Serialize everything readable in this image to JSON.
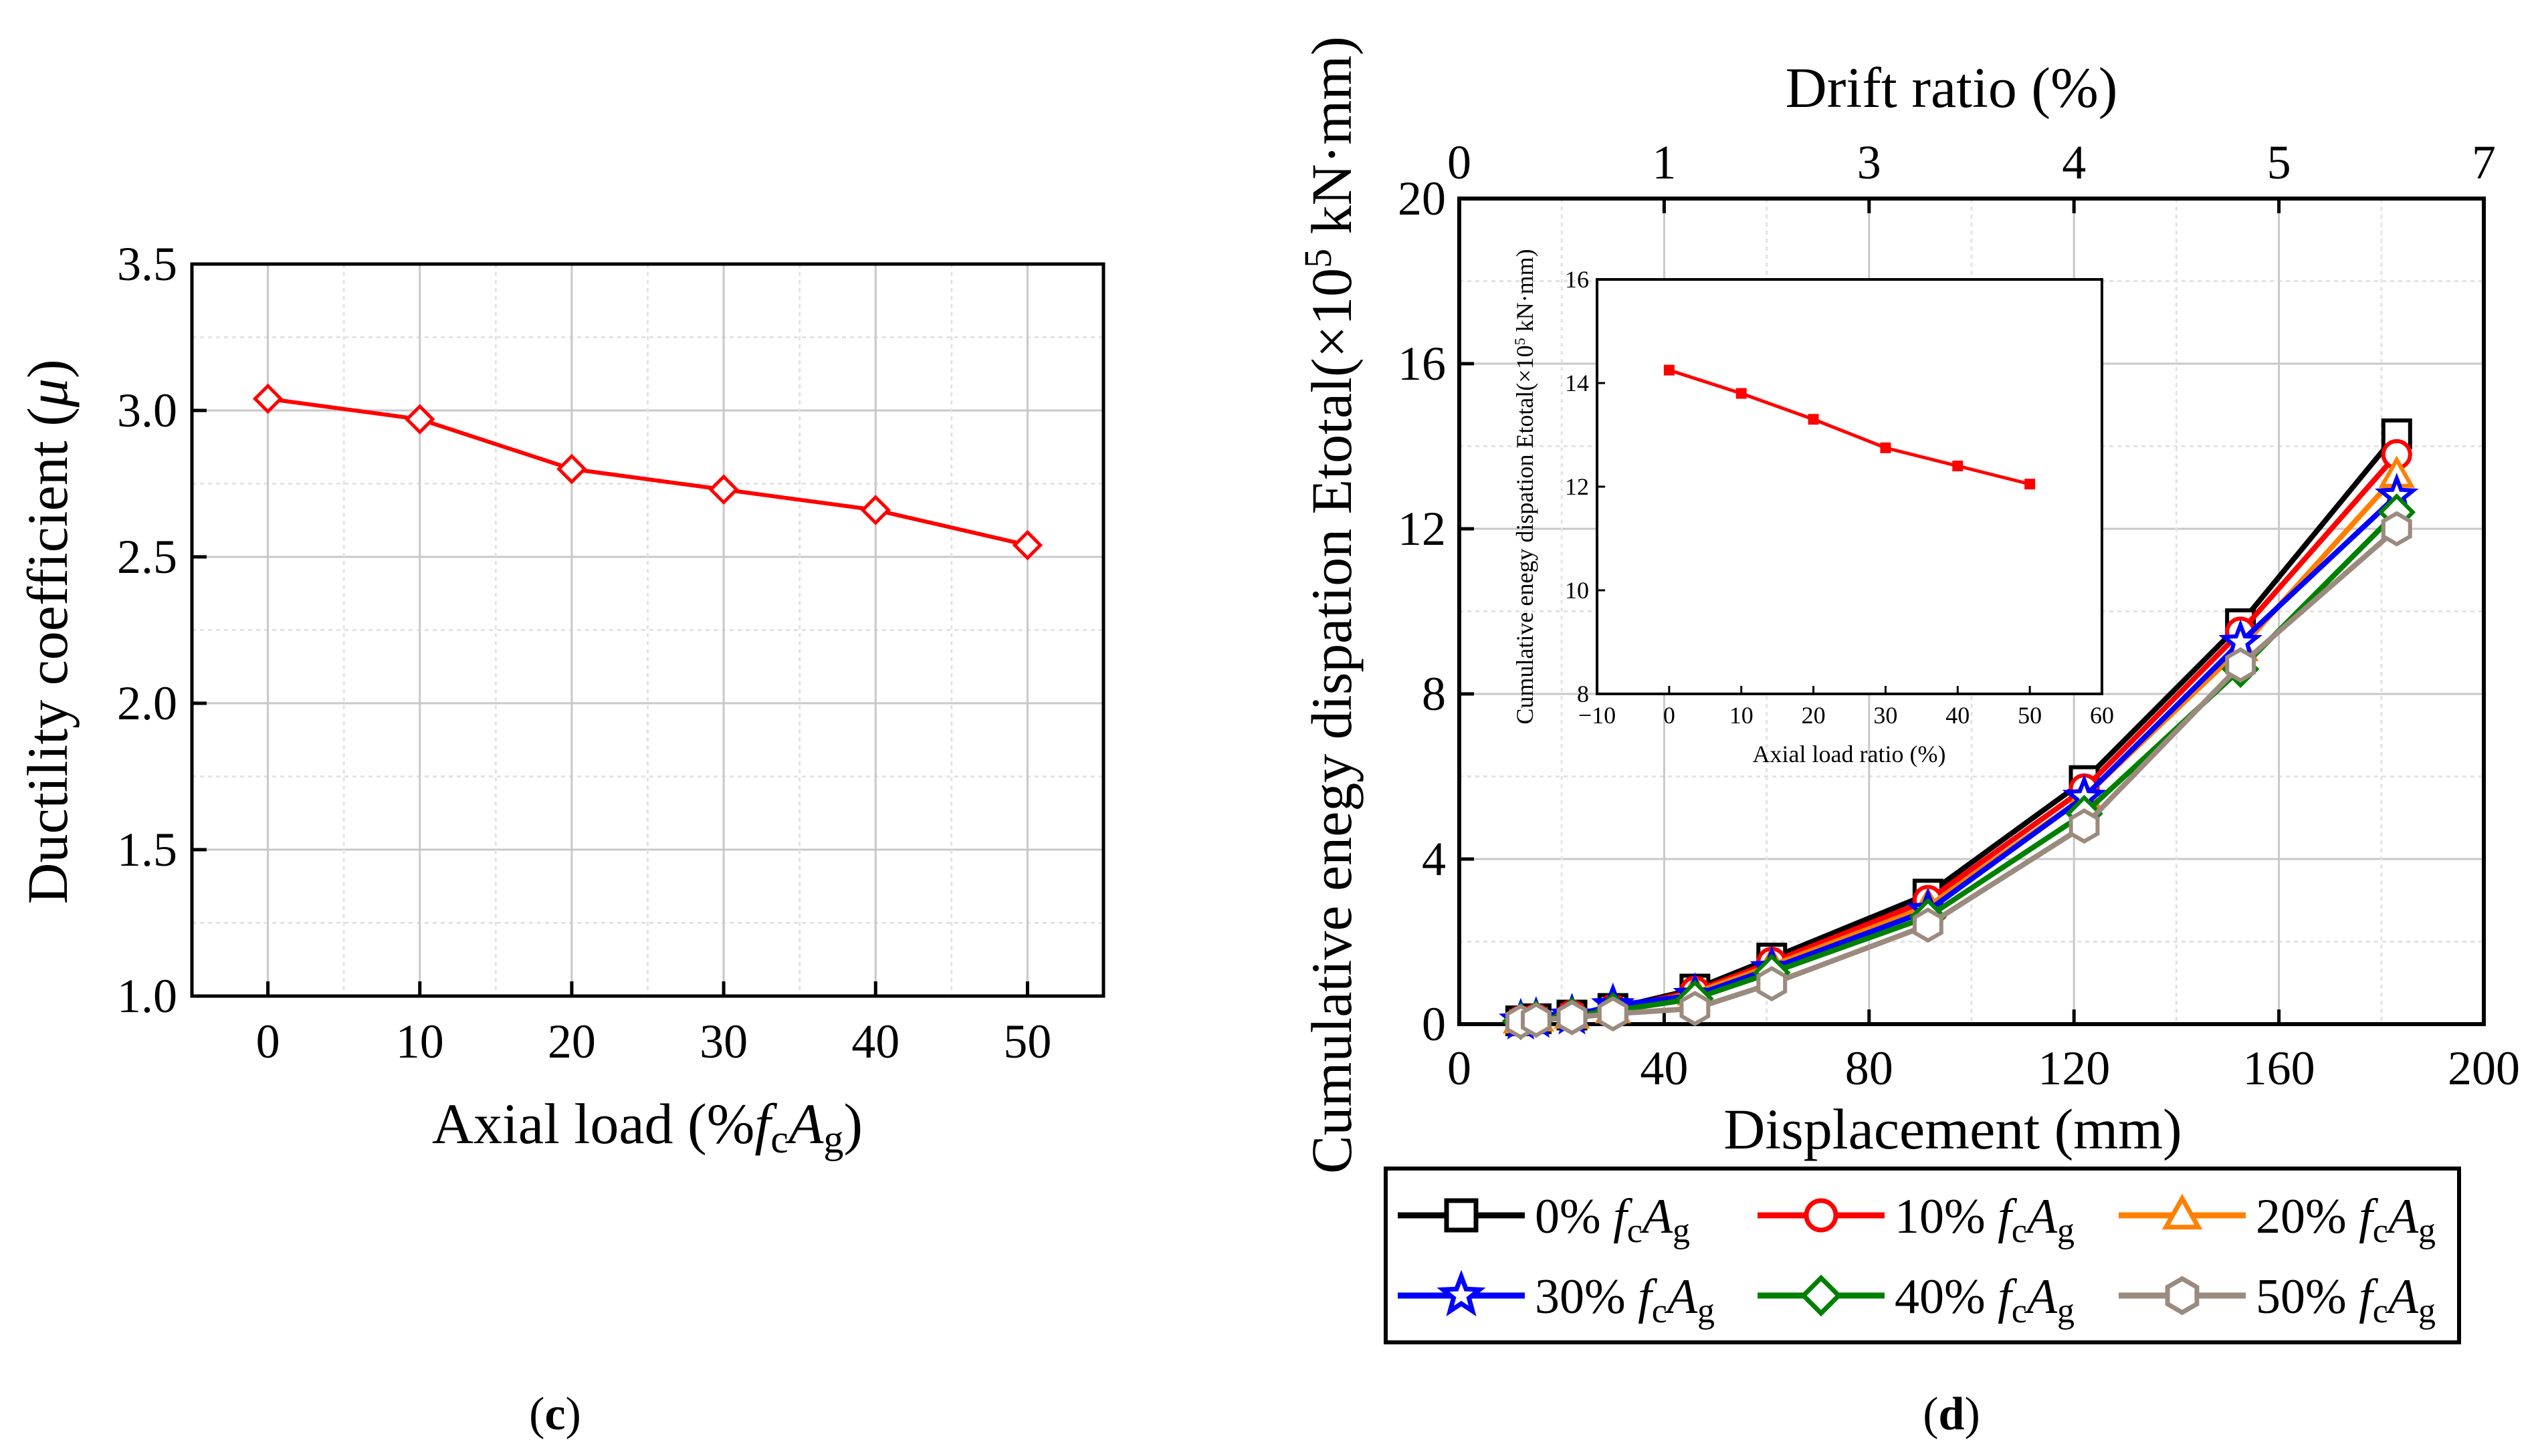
{
  "chart_data": [
    {
      "type": "line",
      "id": "c",
      "xlabel_prefix": "Axial load (%",
      "xlabel_f": "f",
      "xlabel_c": "c",
      "xlabel_A": "A",
      "xlabel_g": "g",
      "xlabel_suffix": ")",
      "ylabel_prefix": "Ductility coefficient (",
      "ylabel_mu": "μ",
      "ylabel_suffix": ")",
      "xlim": [
        -5,
        55
      ],
      "ylim": [
        1.0,
        3.5
      ],
      "xticks": [
        "0",
        "10",
        "20",
        "30",
        "40",
        "50"
      ],
      "xtick_values": [
        0,
        10,
        20,
        30,
        40,
        50
      ],
      "yticks": [
        "1.0",
        "1.5",
        "2.0",
        "2.5",
        "3.0",
        "3.5"
      ],
      "ytick_values": [
        1.0,
        1.5,
        2.0,
        2.5,
        3.0,
        3.5
      ],
      "grid": true,
      "series": [
        {
          "name": "Ductility coefficient",
          "color": "#ff0000",
          "marker": "diamond",
          "x": [
            0,
            10,
            20,
            30,
            40,
            50
          ],
          "y": [
            3.04,
            2.97,
            2.8,
            2.73,
            2.66,
            2.54
          ]
        }
      ],
      "panel_label": "c"
    },
    {
      "type": "line",
      "id": "d",
      "title": "Drift ratio (%)",
      "xlabel": "Displacement (mm)",
      "ylabel": "Cumulative enegy dispation Etotal(×10",
      "ylabel_exp": "5",
      "ylabel_unit": " kN·mm)",
      "xlim": [
        0,
        200
      ],
      "ylim": [
        0,
        20
      ],
      "xticks": [
        "0",
        "40",
        "80",
        "120",
        "160",
        "200"
      ],
      "xtick_values": [
        0,
        40,
        80,
        120,
        160,
        200
      ],
      "yticks": [
        "0",
        "4",
        "8",
        "12",
        "16",
        "20"
      ],
      "ytick_values": [
        0,
        4,
        8,
        12,
        16,
        20
      ],
      "top_ticks": [
        "0",
        "1",
        "3",
        "4",
        "5",
        "7"
      ],
      "top_tick_positions": [
        0,
        40,
        80,
        120,
        160,
        200
      ],
      "grid": true,
      "legend_position": "below",
      "series": [
        {
          "name": "0%",
          "color": "#000000",
          "marker": "square",
          "x": [
            12,
            15,
            22,
            30,
            46,
            61,
            91.5,
            122,
            152.5,
            183
          ],
          "y": [
            0.08,
            0.13,
            0.22,
            0.38,
            0.85,
            1.6,
            3.15,
            5.9,
            9.7,
            14.3
          ]
        },
        {
          "name": "10%",
          "color": "#ff0000",
          "marker": "circle",
          "x": [
            12,
            15,
            22,
            30,
            46,
            61,
            91.5,
            122,
            152.5,
            183
          ],
          "y": [
            0.08,
            0.13,
            0.22,
            0.36,
            0.8,
            1.5,
            3.0,
            5.7,
            9.5,
            13.8
          ]
        },
        {
          "name": "20%",
          "color": "#ff8000",
          "marker": "triangle",
          "x": [
            12,
            15,
            22,
            30,
            46,
            61,
            91.5,
            122,
            152.5,
            183
          ],
          "y": [
            0.08,
            0.13,
            0.2,
            0.33,
            0.76,
            1.42,
            2.85,
            5.5,
            9.1,
            13.3
          ]
        },
        {
          "name": "30%",
          "color": "#0000ff",
          "marker": "star",
          "x": [
            12,
            15,
            22,
            30,
            46,
            61,
            91.5,
            122,
            152.5,
            183
          ],
          "y": [
            0.08,
            0.12,
            0.2,
            0.45,
            0.7,
            1.35,
            2.75,
            5.5,
            9.25,
            12.8
          ]
        },
        {
          "name": "40%",
          "color": "#008000",
          "marker": "diamond",
          "x": [
            12,
            15,
            22,
            30,
            46,
            61,
            91.5,
            122,
            152.5,
            183
          ],
          "y": [
            0.07,
            0.12,
            0.2,
            0.32,
            0.62,
            1.25,
            2.6,
            5.1,
            8.6,
            12.4
          ]
        },
        {
          "name": "50%",
          "color": "#9b8a7e",
          "marker": "hexagon",
          "x": [
            12,
            15,
            22,
            30,
            46,
            61,
            91.5,
            122,
            152.5,
            183
          ],
          "y": [
            0.06,
            0.1,
            0.16,
            0.25,
            0.38,
            0.98,
            2.4,
            4.8,
            8.7,
            12.0
          ]
        }
      ],
      "inset": {
        "xlabel": "Axial load ratio (%)",
        "ylabel": "Cumulative enegy dispation Etotal(×10",
        "ylabel_exp": "5",
        "ylabel_unit": " kN·mm)",
        "xlim": [
          -10,
          60
        ],
        "ylim": [
          8,
          16
        ],
        "xticks": [
          "−10",
          "0",
          "10",
          "20",
          "30",
          "40",
          "50",
          "60"
        ],
        "xtick_values": [
          -10,
          0,
          10,
          20,
          30,
          40,
          50,
          60
        ],
        "yticks": [
          "8",
          "10",
          "12",
          "14",
          "16"
        ],
        "ytick_values": [
          8,
          10,
          12,
          14,
          16
        ],
        "series": [
          {
            "name": "Etotal",
            "color": "#ff0000",
            "marker": "square",
            "x": [
              0,
              10,
              20,
              30,
              40,
              50
            ],
            "y": [
              14.25,
              13.8,
              13.3,
              12.75,
              12.4,
              12.05
            ]
          }
        ]
      },
      "panel_label": "d"
    }
  ],
  "legend_units": {
    "f": "f",
    "c": "c",
    "A": "A",
    "g": "g"
  }
}
